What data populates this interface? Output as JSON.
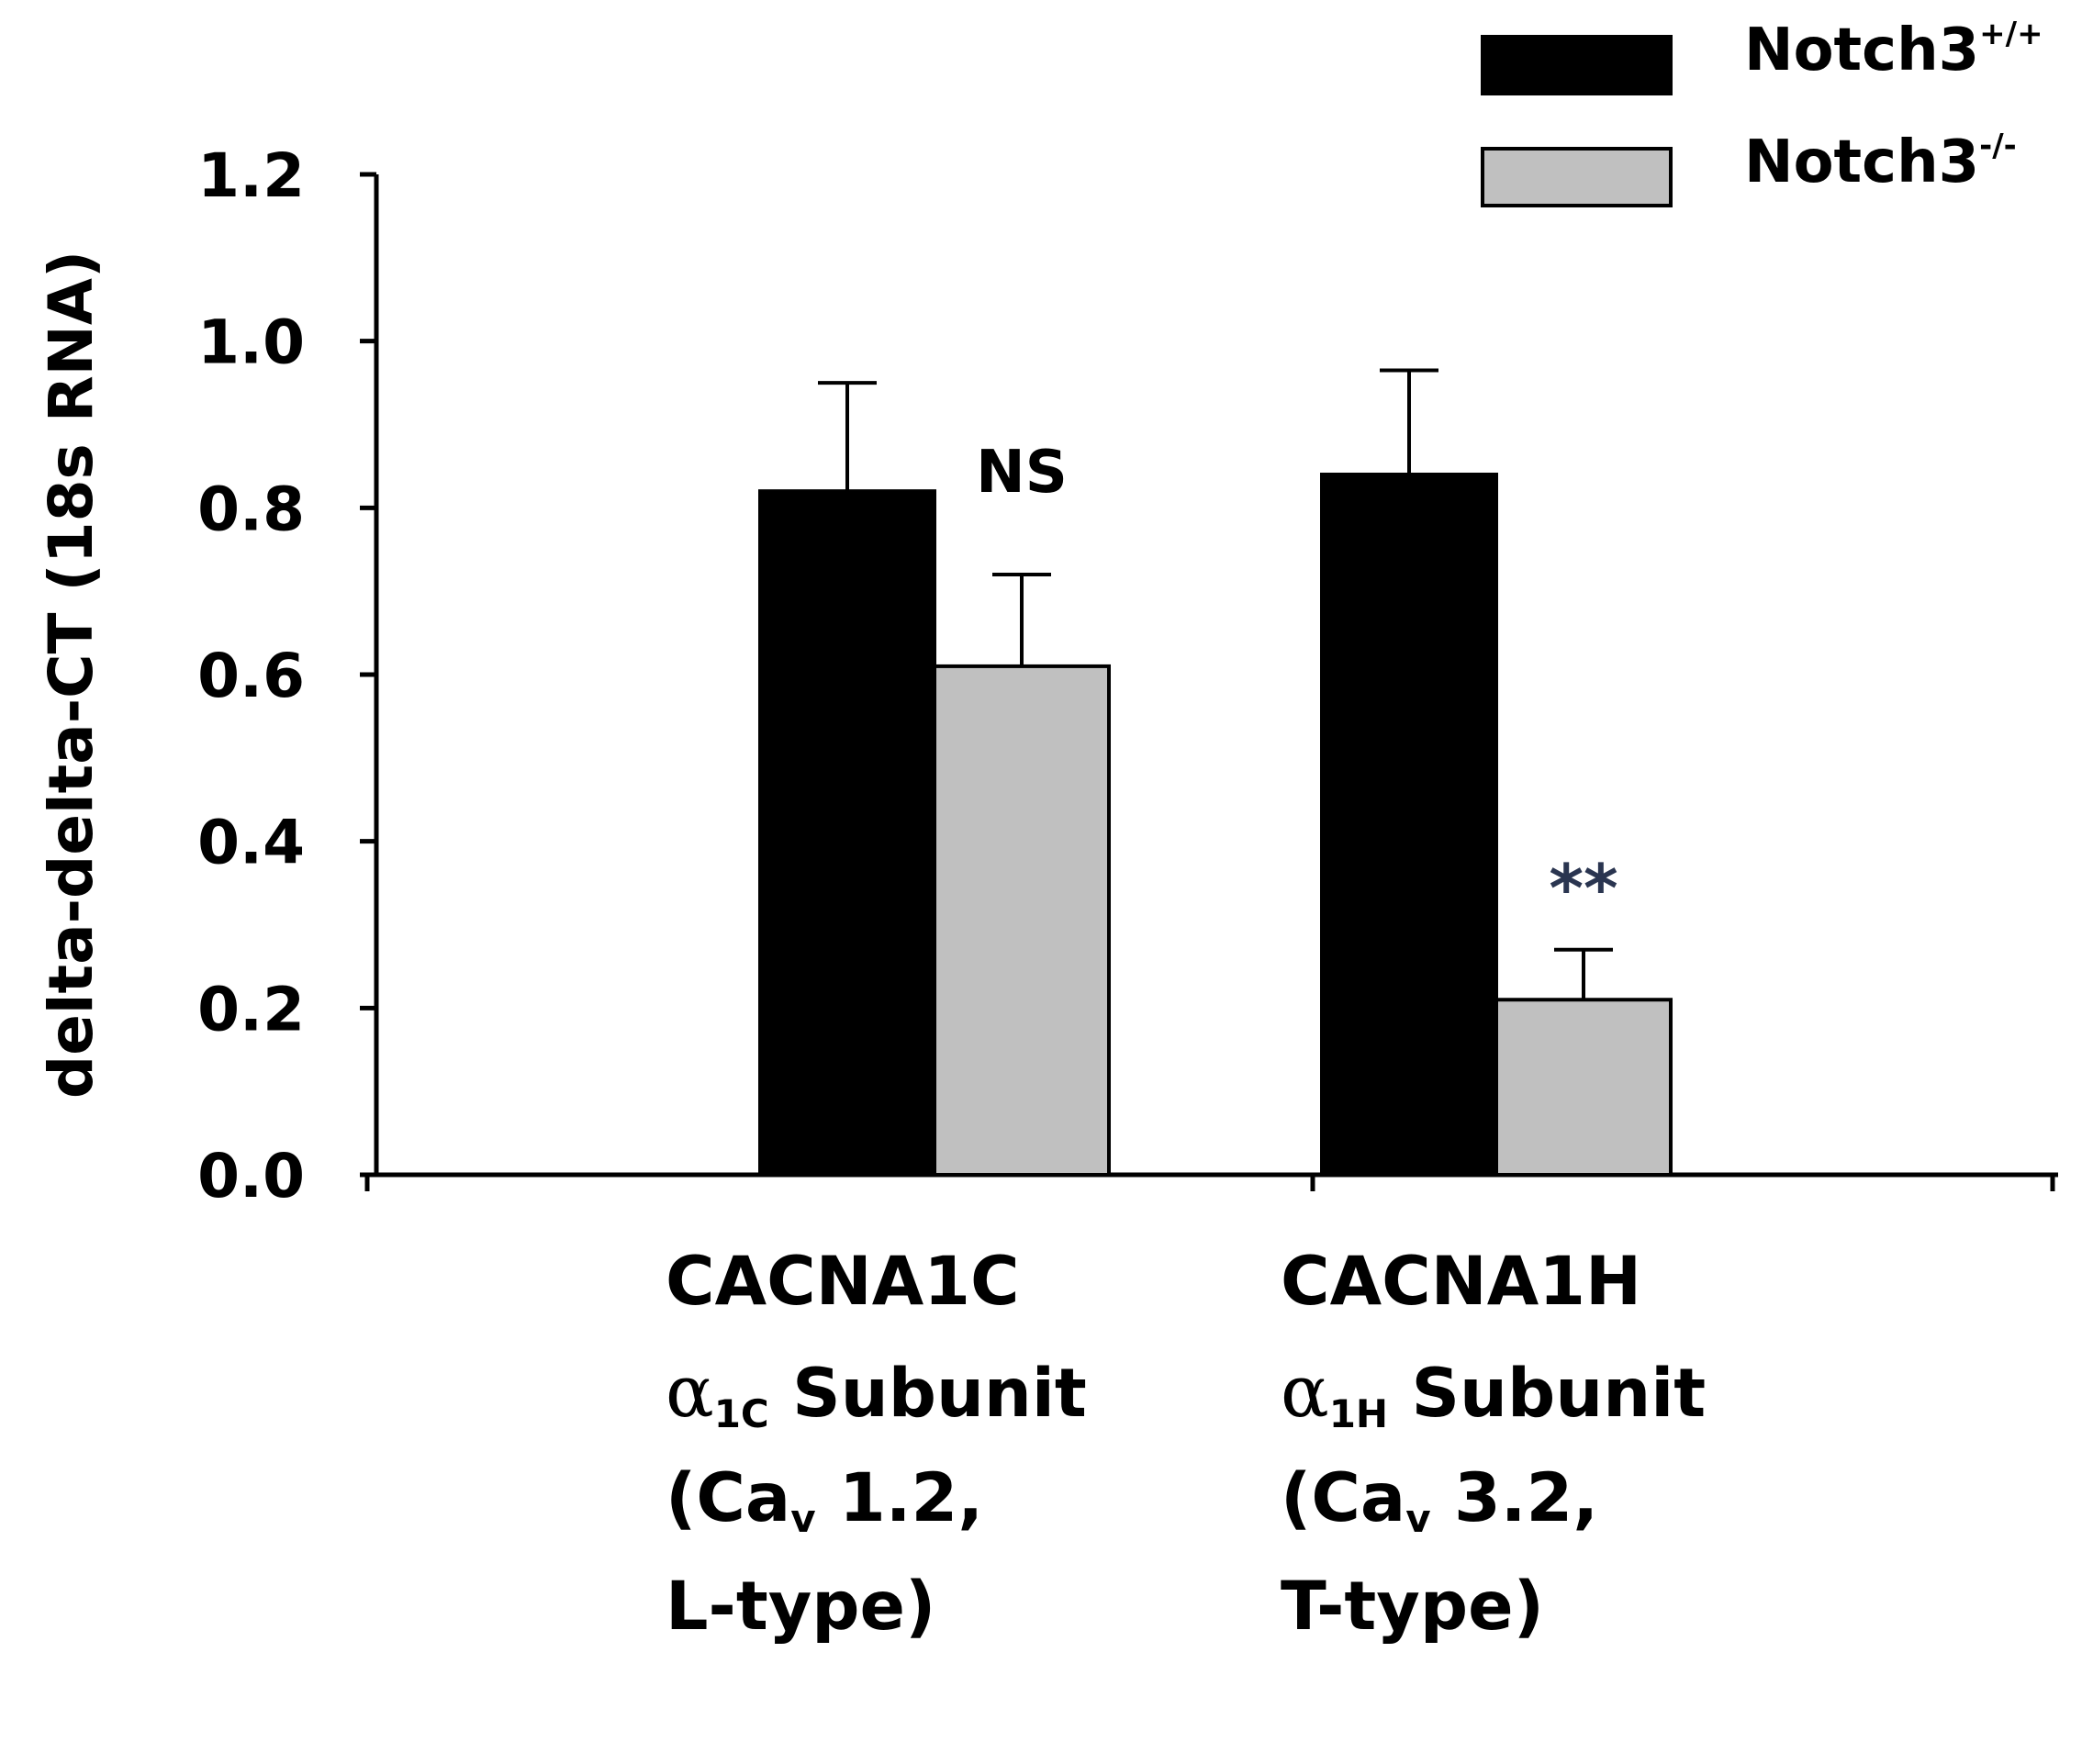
{
  "chart_data": {
    "type": "bar",
    "ylabel": "delta-delta-CT (18s RNA)",
    "ylim": [
      0,
      1.2
    ],
    "yticks": [
      "0.0",
      "0.2",
      "0.4",
      "0.6",
      "0.8",
      "1.0",
      "1.2"
    ],
    "categories": [
      {
        "gene": "CACNA1C",
        "subunit_symbol": "α",
        "subunit_sub": "1C",
        "subunit_word": " Subunit",
        "channel_prefix": "(Ca",
        "channel_sub": "v",
        "channel_rest": " 1.2,",
        "type_line": "L-type)"
      },
      {
        "gene": "CACNA1H",
        "subunit_symbol": "α",
        "subunit_sub": "1H",
        "subunit_word": " Subunit",
        "channel_prefix": "(Ca",
        "channel_sub": "v",
        "channel_rest": " 3.2,",
        "type_line": "T-type)"
      }
    ],
    "series": [
      {
        "name": "Notch3",
        "name_sup": "+/+",
        "color": "#000000",
        "values": [
          0.82,
          0.84
        ],
        "errors": [
          0.13,
          0.125
        ]
      },
      {
        "name": "Notch3",
        "name_sup": "-/-",
        "color": "#c0c0c0",
        "values": [
          0.61,
          0.21
        ],
        "errors": [
          0.11,
          0.06
        ]
      }
    ],
    "annotations": [
      {
        "text": "NS",
        "category": 0
      },
      {
        "text": "**",
        "category": 1
      }
    ],
    "legend_position": "top-right",
    "grid": false
  }
}
